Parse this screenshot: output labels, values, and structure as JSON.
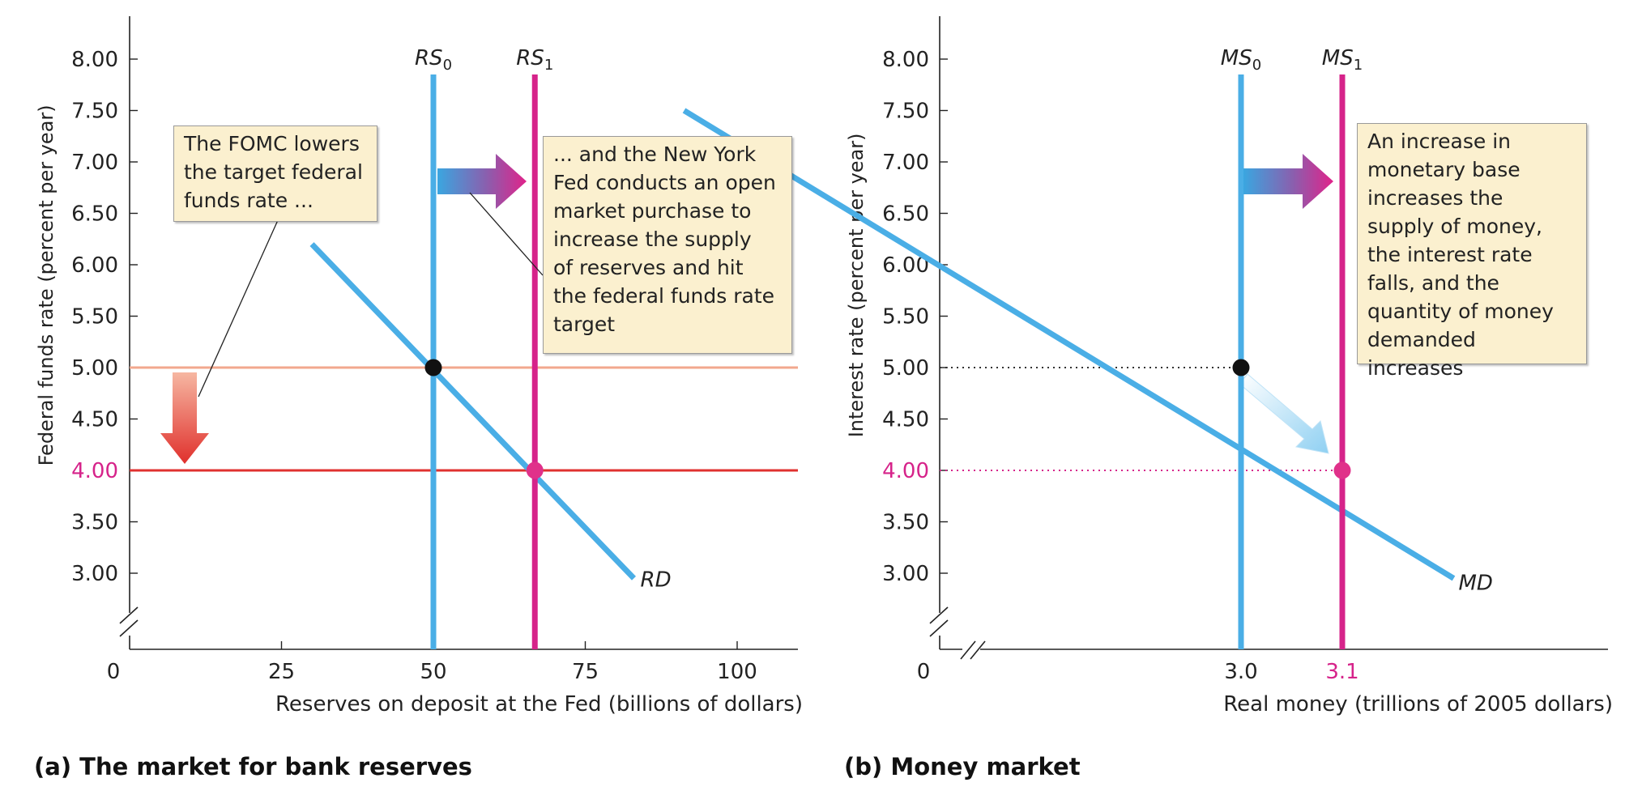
{
  "chart_data": [
    {
      "type": "line",
      "caption": "(a) The market for bank reserves",
      "xlabel": "Reserves on deposit at the Fed (billions of dollars)",
      "ylabel": "Federal funds rate (percent per year)",
      "xlim": [
        0,
        110
      ],
      "ylim": [
        2.3,
        8.4
      ],
      "x_ticks": [
        0,
        25,
        50,
        75,
        100
      ],
      "x_tick_labels": [
        "0",
        "25",
        "50",
        "75",
        "100"
      ],
      "y_ticks": [
        3.0,
        3.5,
        4.0,
        4.5,
        5.0,
        5.5,
        6.0,
        6.5,
        7.0,
        7.5,
        8.0
      ],
      "y_tick_labels": [
        "3.00",
        "3.50",
        "4.00",
        "4.50",
        "5.00",
        "5.50",
        "6.00",
        "6.50",
        "7.00",
        "7.50",
        "8.00"
      ],
      "highlight_y_tick": "4.00",
      "y_axis_break": true,
      "demand": {
        "label": "RD",
        "x": [
          30,
          83
        ],
        "y": [
          6.2,
          2.95
        ]
      },
      "supply": [
        {
          "label": "RS",
          "subscript": "0",
          "x": 50,
          "color": "#4aaee6"
        },
        {
          "label": "RS",
          "subscript": "1",
          "x": 66.7,
          "color": "#d6238a"
        }
      ],
      "target_lines": [
        {
          "y": 5.0,
          "color": "#f2a88e"
        },
        {
          "y": 4.0,
          "color": "#e0312f"
        }
      ],
      "equilibria": [
        {
          "x": 50,
          "y": 5.0,
          "color": "#111111"
        },
        {
          "x": 66.7,
          "y": 4.0,
          "color": "#e0318a"
        }
      ],
      "annotations": {
        "fomc": "The FOMC lowers\nthe target federal\nfunds rate ...",
        "nyfed": "... and the New York\nFed conducts an open\nmarket purchase to\nincrease the supply\nof reserves and hit\nthe federal funds rate\ntarget"
      }
    },
    {
      "type": "line",
      "caption": "(b) Money market",
      "xlabel": "Real money (trillions of 2005 dollars)",
      "ylabel": "Interest rate (percent per year)",
      "ylim": [
        2.3,
        8.4
      ],
      "x_ticks": [
        0,
        3.0,
        3.1
      ],
      "x_tick_labels": [
        "0",
        "3.0",
        "3.1"
      ],
      "highlight_x_tick": "3.1",
      "y_ticks": [
        3.0,
        3.5,
        4.0,
        4.5,
        5.0,
        5.5,
        6.0,
        6.5,
        7.0,
        7.5,
        8.0
      ],
      "y_tick_labels": [
        "3.00",
        "3.50",
        "4.00",
        "4.50",
        "5.00",
        "5.50",
        "6.00",
        "6.50",
        "7.00",
        "7.50",
        "8.00"
      ],
      "highlight_y_tick": "4.00",
      "x_axis_break": true,
      "y_axis_break": true,
      "demand": {
        "label": "MD",
        "x": [
          2.45,
          3.21
        ],
        "y": [
          7.5,
          2.95
        ]
      },
      "supply": [
        {
          "label": "MS",
          "subscript": "0",
          "x": 3.0,
          "color": "#4aaee6"
        },
        {
          "label": "MS",
          "subscript": "1",
          "x": 3.1,
          "color": "#d6238a"
        }
      ],
      "equilibria": [
        {
          "x": 3.0,
          "y": 5.0,
          "color": "#111111"
        },
        {
          "x": 3.1,
          "y": 4.0,
          "color": "#e0318a"
        }
      ],
      "annotations": {
        "base": "An increase in\nmonetary base\nincreases the\nsupply of money,\nthe interest rate\nfalls, and the\nquantity of money\ndemanded increases"
      }
    }
  ],
  "colors": {
    "axis": "#222222",
    "demand": "#4aaee6",
    "highlight_tick": "#d6238a",
    "callout_bg": "#fbf0cf"
  }
}
